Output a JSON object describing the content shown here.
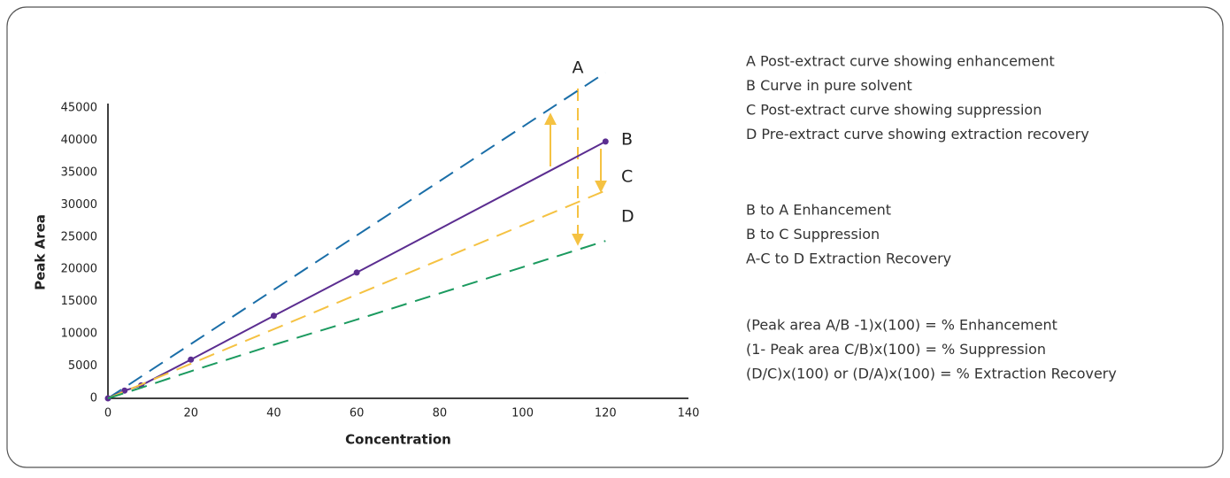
{
  "chart_data": {
    "type": "line",
    "xlabel": "Concentration",
    "ylabel": "Peak Area",
    "x": [
      0,
      4,
      8,
      20,
      40,
      60,
      120
    ],
    "xlim": [
      0,
      140
    ],
    "xticks": [
      0,
      20,
      40,
      60,
      80,
      100,
      120,
      140
    ],
    "ylim": [
      0,
      45000
    ],
    "yticks": [
      0,
      5000,
      10000,
      15000,
      20000,
      25000,
      30000,
      35000,
      40000,
      45000
    ],
    "grid": false,
    "series": [
      {
        "name": "A",
        "color": "#1a6ea8",
        "dashed": true,
        "markers": false,
        "values": [
          0,
          1680,
          3370,
          8420,
          16830,
          25250,
          50500
        ]
      },
      {
        "name": "B",
        "color": "#5b2d90",
        "dashed": false,
        "markers": true,
        "values": [
          0,
          1200,
          2000,
          6000,
          12800,
          19500,
          39800
        ]
      },
      {
        "name": "C",
        "color": "#f5c242",
        "dashed": true,
        "markers": false,
        "values": [
          0,
          1070,
          2140,
          5360,
          10720,
          16080,
          32200
        ]
      },
      {
        "name": "D",
        "color": "#1b9a5f",
        "dashed": true,
        "markers": false,
        "values": [
          0,
          820,
          1640,
          4200,
          8300,
          12200,
          24400
        ]
      }
    ],
    "notes": [
      [
        "A Post-extract curve showing enhancement",
        "B Curve in pure solvent",
        "C Post-extract curve showing suppression",
        "D Pre-extract curve showing extraction recovery"
      ],
      [
        "B to A Enhancement",
        "B to C Suppression",
        "A-C to D Extraction Recovery"
      ],
      [
        "(Peak area A/B -1)x(100) = % Enhancement",
        "(1- Peak area C/B)x(100) = % Suppression",
        "(D/C)x(100) or (D/A)x(100) = % Extraction Recovery"
      ]
    ]
  }
}
